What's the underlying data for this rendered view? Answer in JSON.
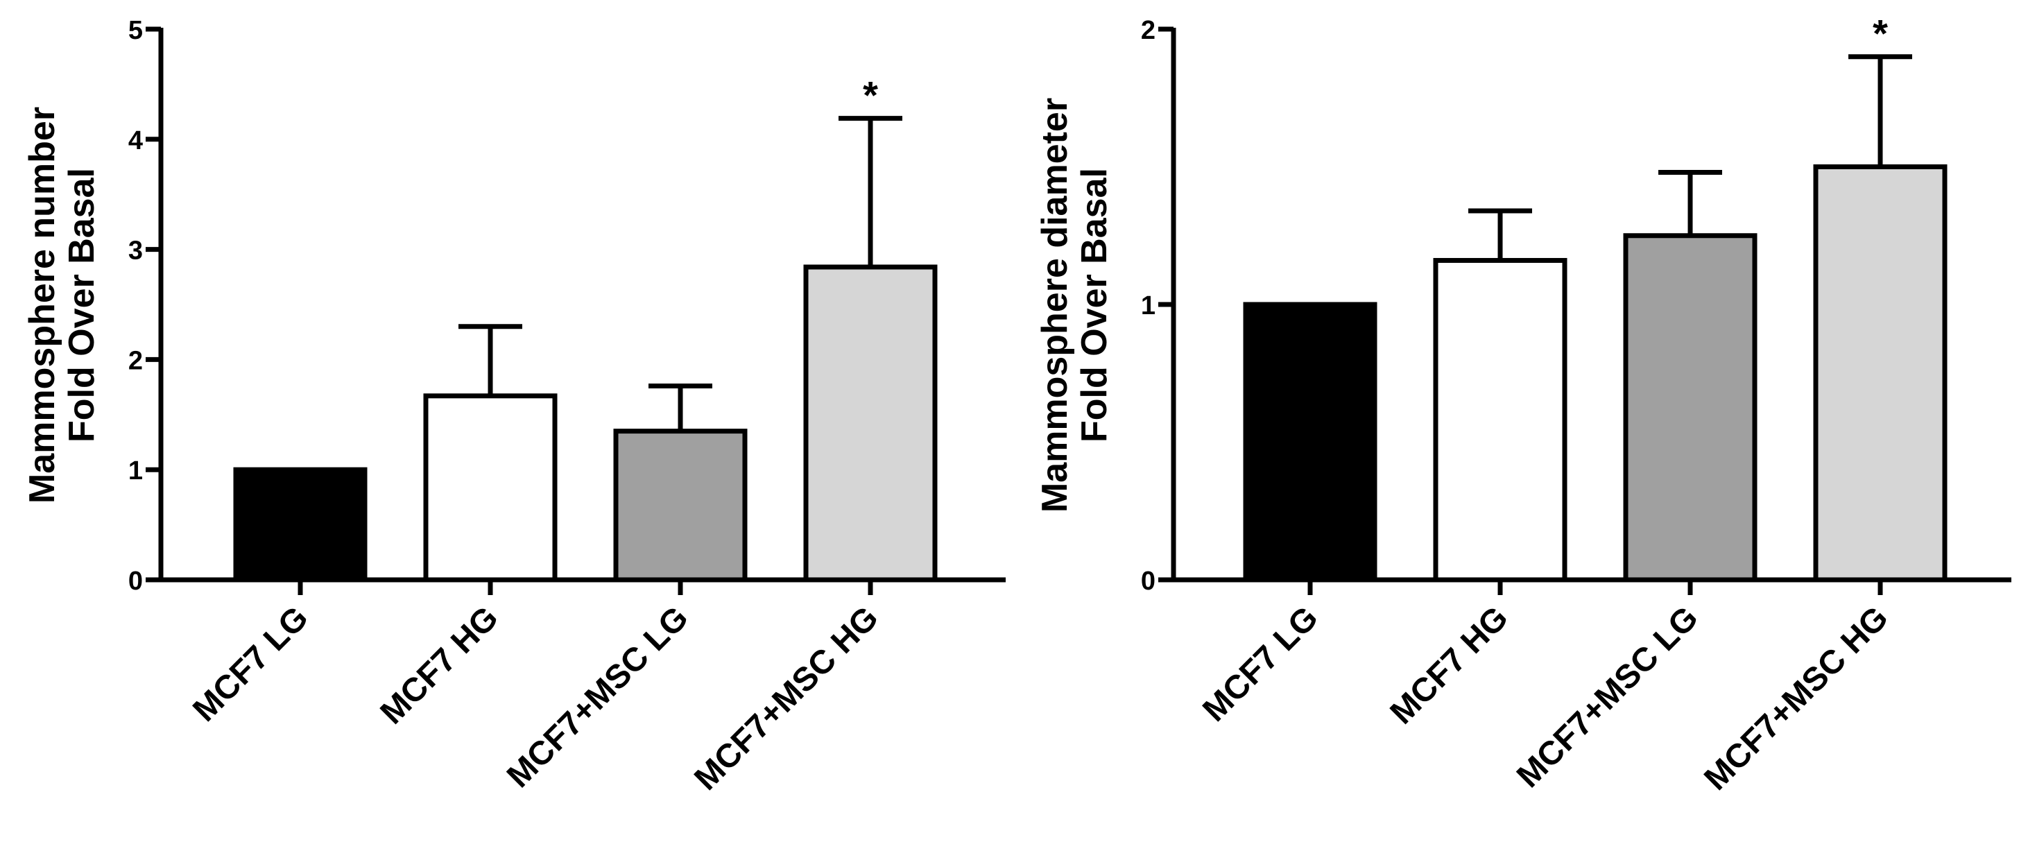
{
  "chart_data": [
    {
      "type": "bar",
      "title": "",
      "xlabel": "",
      "ylabel_lines": [
        "Mammosphere number",
        "Fold Over Basal"
      ],
      "categories": [
        "MCF7 LG",
        "MCF7 HG",
        "MCF7+MSC LG",
        "MCF7+MSC HG"
      ],
      "values": [
        1.0,
        1.67,
        1.35,
        2.84
      ],
      "errors": [
        0.0,
        0.63,
        0.41,
        1.35
      ],
      "significance": [
        "",
        "",
        "",
        "*"
      ],
      "bar_colors": [
        "#000000",
        "#ffffff",
        "#a0a0a0",
        "#d6d6d6"
      ],
      "ylim": [
        0,
        5
      ],
      "yticks": [
        0,
        1,
        2,
        3,
        4,
        5
      ],
      "ytick_labels": [
        "0",
        "1",
        "2",
        "3",
        "4",
        "5"
      ],
      "grid": false,
      "legend": "none"
    },
    {
      "type": "bar",
      "title": "",
      "xlabel": "",
      "ylabel_lines": [
        "Mammosphere diameter",
        "Fold Over Basal"
      ],
      "categories": [
        "MCF7 LG",
        "MCF7 HG",
        "MCF7+MSC LG",
        "MCF7+MSC HG"
      ],
      "values": [
        1.0,
        1.16,
        1.25,
        1.5
      ],
      "errors": [
        0.0,
        0.18,
        0.23,
        0.4
      ],
      "significance": [
        "",
        "",
        "",
        "*"
      ],
      "bar_colors": [
        "#000000",
        "#ffffff",
        "#a0a0a0",
        "#d6d6d6"
      ],
      "ylim": [
        0,
        2
      ],
      "yticks": [
        0,
        1,
        2
      ],
      "ytick_labels": [
        "0",
        "1",
        "2"
      ],
      "grid": false,
      "legend": "none"
    }
  ]
}
